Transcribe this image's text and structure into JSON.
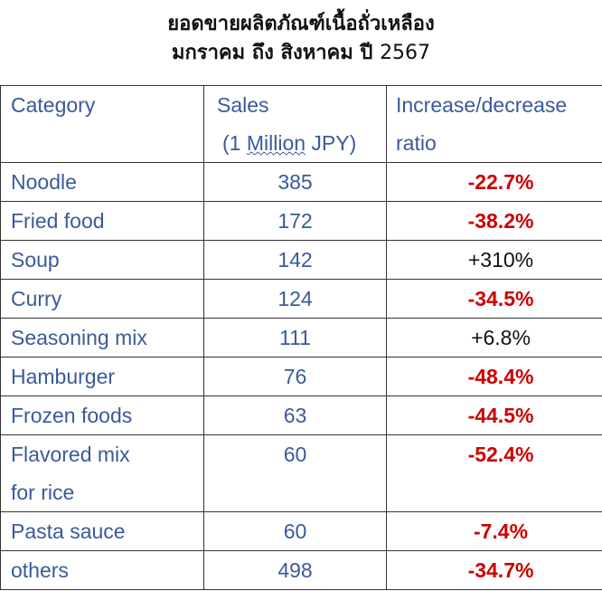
{
  "title": {
    "line1": "ยอดขายผลิตภัณฑ์เนื้อถั่วเหลือง",
    "line2_thai": "มกราคม ถึง สิงหาคม ปี ",
    "line2_year": "2567"
  },
  "table": {
    "headers": {
      "category": "Category",
      "sales": "Sales",
      "sales_unit_prefix": "(1 ",
      "sales_unit_million": "Million",
      "sales_unit_suffix": " JPY)",
      "ratio_line1": "Increase/decrease",
      "ratio_line2": "ratio"
    },
    "rows": [
      {
        "category": "Noodle",
        "sales": "385",
        "ratio": "-22.7%"
      },
      {
        "category": "Fried food",
        "sales": "172",
        "ratio": "-38.2%"
      },
      {
        "category": "Soup",
        "sales": "142",
        "ratio": "+310%"
      },
      {
        "category": "Curry",
        "sales": "124",
        "ratio": "-34.5%"
      },
      {
        "category": "Seasoning mix",
        "sales": "111",
        "ratio": "+6.8%"
      },
      {
        "category": "Hamburger",
        "sales": "76",
        "ratio": "-48.4%"
      },
      {
        "category": "Frozen foods",
        "sales": "63",
        "ratio": "-44.5%"
      },
      {
        "category_line1": "Flavored mix",
        "category_line2": "for rice",
        "sales": "60",
        "ratio": "-52.4%"
      },
      {
        "category": "Pasta sauce",
        "sales": "60",
        "ratio": "-7.4%"
      },
      {
        "category": "others",
        "sales": "498",
        "ratio": "-34.7%"
      }
    ]
  },
  "colors": {
    "label_blue": "#3a5a9a",
    "decrease_red": "#cc0000",
    "increase_black": "#111111"
  }
}
